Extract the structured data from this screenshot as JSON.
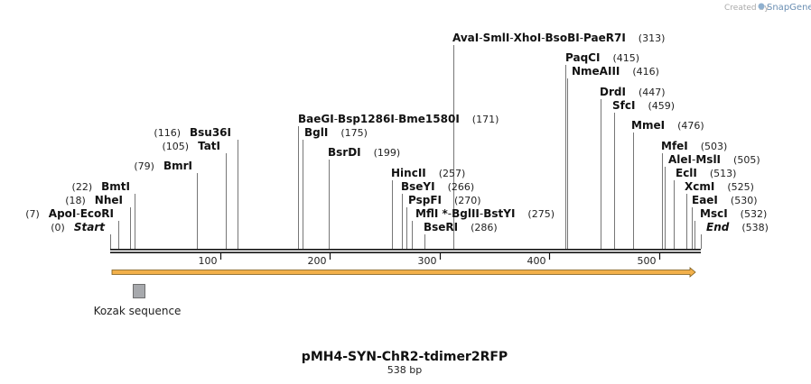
{
  "brand": {
    "created_by": "Created by",
    "name": "SnapGene"
  },
  "map": {
    "title": "pMH4-SYN-ChR2-tdimer2RFP",
    "length_label": "538 bp",
    "length": 538
  },
  "ticks": [
    {
      "label": "100",
      "value": 100
    },
    {
      "label": "200",
      "value": 200
    },
    {
      "label": "300",
      "value": 300
    },
    {
      "label": "400",
      "value": 400
    },
    {
      "label": "500",
      "value": 500
    }
  ],
  "sites": [
    {
      "id": "avai",
      "names": [
        "AvaI",
        "SmlI",
        "XhoI",
        "BsoBI",
        "PaeR7I"
      ],
      "pos_text": "(313)",
      "pos": 313
    },
    {
      "id": "paqci",
      "names": [
        "PaqCI"
      ],
      "pos_text": "(415)",
      "pos": 415
    },
    {
      "id": "nmeaiii",
      "names": [
        "NmeAIII"
      ],
      "pos_text": "(416)",
      "pos": 416
    },
    {
      "id": "drdi",
      "names": [
        "DrdI"
      ],
      "pos_text": "(447)",
      "pos": 447
    },
    {
      "id": "sfci",
      "names": [
        "SfcI"
      ],
      "pos_text": "(459)",
      "pos": 459
    },
    {
      "id": "mmei",
      "names": [
        "MmeI"
      ],
      "pos_text": "(476)",
      "pos": 476
    },
    {
      "id": "mfei",
      "names": [
        "MfeI"
      ],
      "pos_text": "(503)",
      "pos": 503
    },
    {
      "id": "alei",
      "names": [
        "AleI",
        "MslI"
      ],
      "pos_text": "(505)",
      "pos": 505
    },
    {
      "id": "ecli",
      "names": [
        "EclI"
      ],
      "pos_text": "(513)",
      "pos": 513
    },
    {
      "id": "xcmi",
      "names": [
        "XcmI"
      ],
      "pos_text": "(525)",
      "pos": 525
    },
    {
      "id": "eaei",
      "names": [
        "EaeI"
      ],
      "pos_text": "(530)",
      "pos": 530
    },
    {
      "id": "msci",
      "names": [
        "MscI"
      ],
      "pos_text": "(532)",
      "pos": 532
    },
    {
      "id": "end",
      "names": [
        "End"
      ],
      "pos_text": "(538)",
      "pos": 538
    },
    {
      "id": "baegi",
      "names": [
        "BaeGI",
        "Bsp1286I",
        "Bme1580I"
      ],
      "pos_text": "(171)",
      "pos": 171
    },
    {
      "id": "bgli",
      "names": [
        "BglI"
      ],
      "pos_text": "(175)",
      "pos": 175
    },
    {
      "id": "bsrdi",
      "names": [
        "BsrDI"
      ],
      "pos_text": "(199)",
      "pos": 199
    },
    {
      "id": "hincii",
      "names": [
        "HincII"
      ],
      "pos_text": "(257)",
      "pos": 257
    },
    {
      "id": "bseyi",
      "names": [
        "BseYI"
      ],
      "pos_text": "(266)",
      "pos": 266
    },
    {
      "id": "pspfi",
      "names": [
        "PspFI"
      ],
      "pos_text": "(270)",
      "pos": 270
    },
    {
      "id": "mfli",
      "names": [
        "MflI *",
        "BglII",
        "BstYI"
      ],
      "pos_text": "(275)",
      "pos": 275
    },
    {
      "id": "bseri",
      "names": [
        "BseRI"
      ],
      "pos_text": "(286)",
      "pos": 286
    },
    {
      "id": "bsu36i",
      "names": [
        "Bsu36I"
      ],
      "pos_text": "(116)",
      "pos": 116
    },
    {
      "id": "tati",
      "names": [
        "TatI"
      ],
      "pos_text": "(105)",
      "pos": 105
    },
    {
      "id": "bmri",
      "names": [
        "BmrI"
      ],
      "pos_text": "(79)",
      "pos": 79
    },
    {
      "id": "bmti",
      "names": [
        "BmtI"
      ],
      "pos_text": "(22)",
      "pos": 22
    },
    {
      "id": "nhei",
      "names": [
        "NheI"
      ],
      "pos_text": "(18)",
      "pos": 18
    },
    {
      "id": "apoi",
      "names": [
        "ApoI",
        "EcoRI"
      ],
      "pos_text": "(7)",
      "pos": 7
    },
    {
      "id": "start",
      "names": [
        "Start"
      ],
      "pos_text": "(0)",
      "pos": 0
    }
  ],
  "features": [
    {
      "id": "kozak",
      "label": "Kozak sequence",
      "start": 21,
      "end": 32,
      "color": "#a7a9ad"
    }
  ],
  "orf": {
    "start": 1,
    "end": 538,
    "color": "#f2b04a",
    "direction": "forward"
  }
}
